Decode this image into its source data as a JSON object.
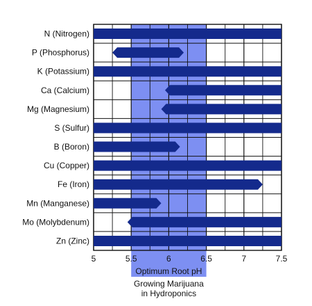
{
  "chart_data": {
    "type": "bar",
    "orientation": "horizontal-range",
    "categories": [
      "N (Nitrogen)",
      "P (Phosphorus)",
      "K (Potassium)",
      "Ca (Calcium)",
      "Mg (Magnesium)",
      "S (Sulfur)",
      "B (Boron)",
      "Cu (Copper)",
      "Fe (Iron)",
      "Mn (Manganese)",
      "Mo (Molybdenum)",
      "Zn (Zinc)"
    ],
    "ranges": [
      {
        "start": 5.0,
        "end": 7.5,
        "start_arrow": false,
        "end_arrow": false
      },
      {
        "start": 5.25,
        "end": 6.2,
        "start_arrow": true,
        "end_arrow": true
      },
      {
        "start": 5.0,
        "end": 7.5,
        "start_arrow": false,
        "end_arrow": false
      },
      {
        "start": 5.95,
        "end": 7.5,
        "start_arrow": true,
        "end_arrow": false
      },
      {
        "start": 5.9,
        "end": 7.5,
        "start_arrow": true,
        "end_arrow": false
      },
      {
        "start": 5.0,
        "end": 7.5,
        "start_arrow": false,
        "end_arrow": false
      },
      {
        "start": 5.0,
        "end": 6.15,
        "start_arrow": false,
        "end_arrow": true
      },
      {
        "start": 5.0,
        "end": 7.5,
        "start_arrow": false,
        "end_arrow": false
      },
      {
        "start": 5.0,
        "end": 7.25,
        "start_arrow": false,
        "end_arrow": true
      },
      {
        "start": 5.0,
        "end": 5.9,
        "start_arrow": false,
        "end_arrow": true
      },
      {
        "start": 5.45,
        "end": 7.5,
        "start_arrow": true,
        "end_arrow": false
      },
      {
        "start": 5.0,
        "end": 7.5,
        "start_arrow": false,
        "end_arrow": false
      }
    ],
    "x_ticks": [
      "5",
      "5.5",
      "6",
      "6.5",
      "7",
      "7.5"
    ],
    "xlim": [
      5,
      7.5
    ],
    "x_gridlines": [
      5,
      5.25,
      5.5,
      5.75,
      6,
      6.25,
      6.5,
      6.75,
      7,
      7.25,
      7.5
    ],
    "highlight_range": [
      5.5,
      6.5
    ],
    "highlight_caption": [
      "Optimum Root pH",
      "Growing Marijuana",
      "in Hydroponics"
    ],
    "grid": true,
    "colors": {
      "bar": "#142a8c",
      "highlight": "#7d8ff2",
      "grid": "#111111",
      "background": "#ffffff"
    }
  }
}
